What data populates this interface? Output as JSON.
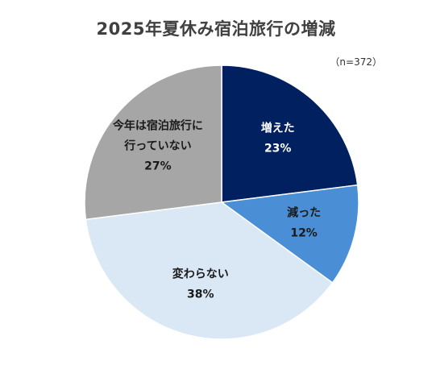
{
  "chart_data": {
    "type": "pie",
    "title": "2025年夏休み宿泊旅行の増減",
    "note": "（n=372）",
    "slices": [
      {
        "name": "増えた",
        "label_lines": [
          "増えた"
        ],
        "value": 23,
        "value_label": "23%",
        "color": "#002060",
        "text_color": "#ffffff"
      },
      {
        "name": "減った",
        "label_lines": [
          "減った"
        ],
        "value": 12,
        "value_label": "12%",
        "color": "#4a8fd6",
        "text_color": "#1a1a1a"
      },
      {
        "name": "変わらない",
        "label_lines": [
          "変わらない"
        ],
        "value": 38,
        "value_label": "38%",
        "color": "#dae7f5",
        "text_color": "#1a1a1a"
      },
      {
        "name": "今年は宿泊旅行に行っていない",
        "label_lines": [
          "今年は宿泊旅行に",
          "行っていない"
        ],
        "value": 27,
        "value_label": "27%",
        "color": "#a6a6a6",
        "text_color": "#1a1a1a"
      }
    ],
    "start_angle": "12 o'clock",
    "direction": "clockwise",
    "legend": "none"
  }
}
